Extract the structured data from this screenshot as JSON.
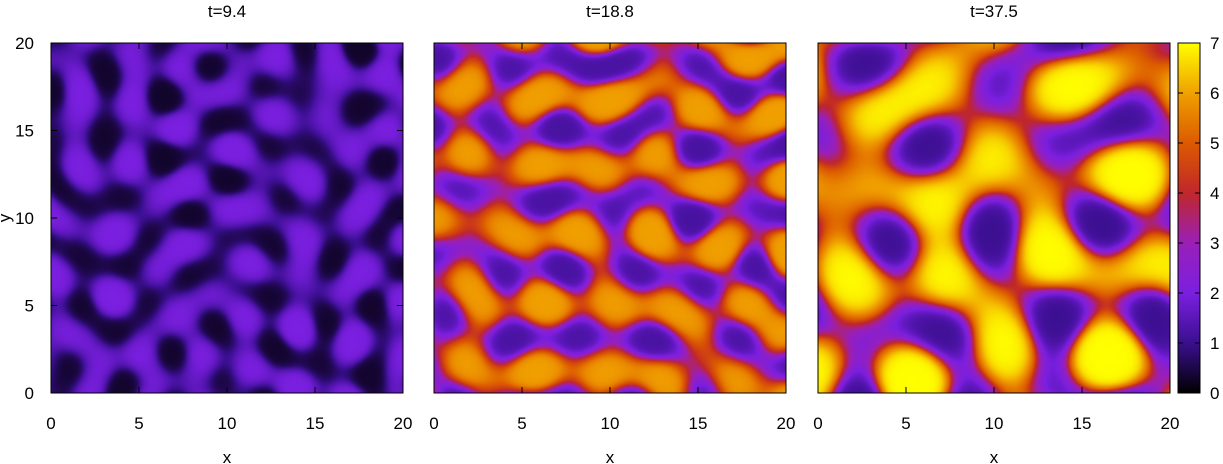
{
  "chart_data": [
    {
      "type": "heatmap",
      "title": "t=9.4",
      "xlabel": "x",
      "ylabel": "y",
      "xlim": [
        0,
        20
      ],
      "ylim": [
        0,
        20
      ],
      "xticks": [
        "0",
        "5",
        "10",
        "15",
        "20"
      ],
      "yticks": [
        "0",
        "5",
        "10",
        "15",
        "20"
      ],
      "pattern": "fine labyrinthine stripes",
      "value_range": [
        0.3,
        2.0
      ],
      "typical_value": 1.3
    },
    {
      "type": "heatmap",
      "title": "t=18.8",
      "xlabel": "x",
      "ylabel": "",
      "xlim": [
        0,
        20
      ],
      "ylim": [
        0,
        20
      ],
      "xticks": [
        "0",
        "5",
        "10",
        "15",
        "20"
      ],
      "pattern": "labyrinthine stripes and spots",
      "value_range": [
        1.2,
        6.0
      ],
      "typical_value": 4.2
    },
    {
      "type": "heatmap",
      "title": "t=37.5",
      "xlabel": "x",
      "ylabel": "",
      "xlim": [
        0,
        20
      ],
      "ylim": [
        0,
        20
      ],
      "xticks": [
        "0",
        "5",
        "10",
        "15",
        "20"
      ],
      "pattern": "coarse labyrinthine stripes and spots",
      "value_range": [
        1.0,
        7.0
      ],
      "typical_value": 5.0
    }
  ],
  "colorbar": {
    "range": [
      0,
      7
    ],
    "ticks": [
      "0",
      "1",
      "2",
      "3",
      "4",
      "5",
      "6",
      "7"
    ],
    "palette": "gnuplot pm3d (black-purple-red-orange-yellow)",
    "colors": [
      "#000000",
      "#3a0f8f",
      "#7b1fe0",
      "#9a1fb8",
      "#c0262a",
      "#dc5a00",
      "#f0a000",
      "#ffff00"
    ]
  }
}
